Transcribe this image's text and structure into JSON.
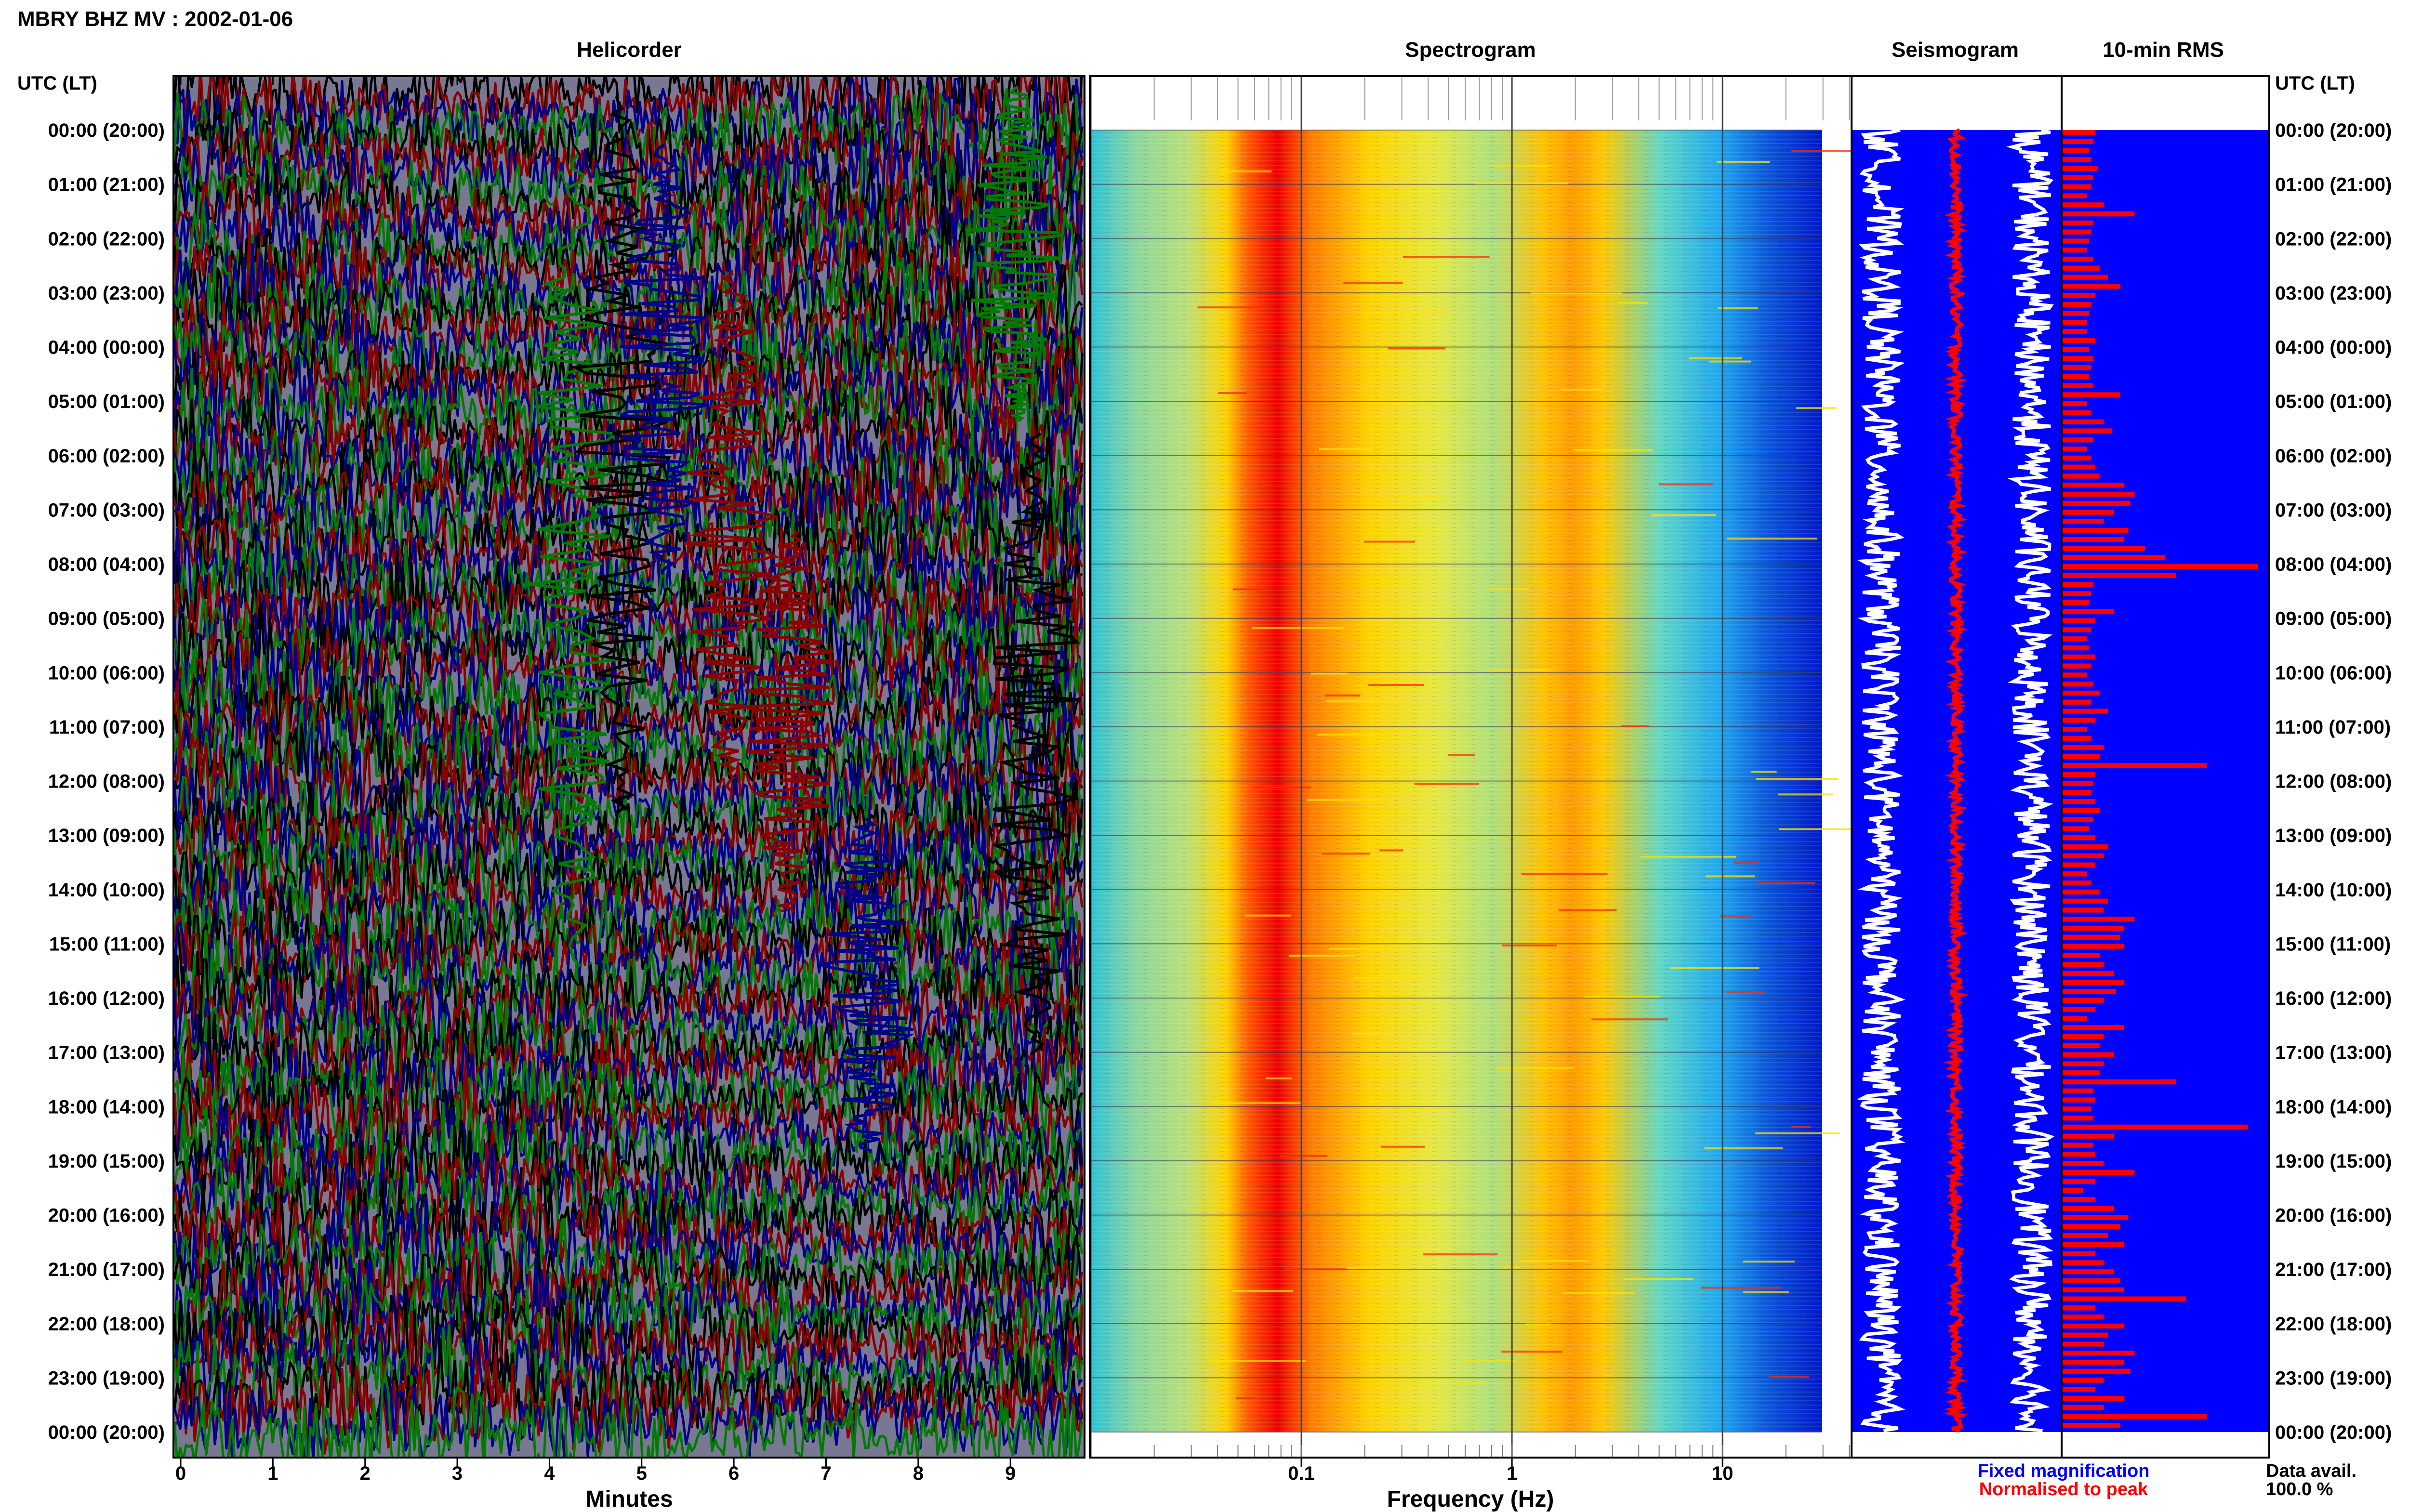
{
  "header": {
    "title": "MBRY BHZ MV : 2002-01-06",
    "utc_label_left": "UTC (LT)",
    "utc_label_right": "UTC (LT)"
  },
  "panels": {
    "helicorder": "Helicorder",
    "spectrogram": "Spectrogram",
    "seismogram": "Seismogram",
    "rms": "10-min RMS"
  },
  "legend": {
    "fixed": "Fixed magnification",
    "normalised": "Normalised to peak",
    "fixed_color": "#0000ff",
    "normalised_color": "#ff0000"
  },
  "data_avail": {
    "label": "Data avail.",
    "value": "100.0 %"
  },
  "colors": {
    "helicorder_traces": [
      "#000000",
      "#8b0000",
      "#00008b",
      "#007a00"
    ],
    "seismogram_bg": "#0000ff",
    "rms_bar": "#ff0000"
  },
  "chart_data": [
    {
      "type": "line",
      "title": "Helicorder",
      "xlabel": "Minutes",
      "xlim": [
        0,
        10
      ],
      "x_ticks": [
        "0",
        "1",
        "2",
        "3",
        "4",
        "5",
        "6",
        "7",
        "8",
        "9"
      ],
      "rows_utc": [
        "00:00 (20:00)",
        "01:00 (21:00)",
        "02:00 (22:00)",
        "03:00 (23:00)",
        "04:00 (00:00)",
        "05:00 (01:00)",
        "06:00 (02:00)",
        "07:00 (03:00)",
        "08:00 (04:00)",
        "09:00 (05:00)",
        "10:00 (06:00)",
        "11:00 (07:00)",
        "12:00 (08:00)",
        "13:00 (09:00)",
        "14:00 (10:00)",
        "15:00 (11:00)",
        "16:00 (12:00)",
        "17:00 (13:00)",
        "18:00 (14:00)",
        "19:00 (15:00)",
        "20:00 (16:00)",
        "21:00 (17:00)",
        "22:00 (18:00)",
        "23:00 (19:00)",
        "00:00 (20:00)"
      ]
    },
    {
      "type": "heatmap",
      "title": "Spectrogram",
      "xlabel": "Frequency (Hz)",
      "x_scale": "log",
      "xlim": [
        0.01,
        50
      ],
      "x_tick_labels": [
        "0.1",
        "1",
        "10"
      ],
      "peak_band_hz": [
        0.18,
        0.3
      ],
      "secondary_band_hz": [
        2.5,
        4.5
      ]
    },
    {
      "type": "line",
      "title": "Seismogram",
      "note_rows": 144
    },
    {
      "type": "bar",
      "title": "10-min RMS",
      "bins": 144,
      "relative_values": [
        0.16,
        0.15,
        0.13,
        0.14,
        0.17,
        0.15,
        0.14,
        0.12,
        0.2,
        0.35,
        0.15,
        0.14,
        0.13,
        0.12,
        0.15,
        0.18,
        0.22,
        0.28,
        0.16,
        0.14,
        0.13,
        0.12,
        0.12,
        0.16,
        0.13,
        0.15,
        0.14,
        0.13,
        0.15,
        0.28,
        0.12,
        0.14,
        0.2,
        0.24,
        0.15,
        0.12,
        0.14,
        0.16,
        0.18,
        0.3,
        0.35,
        0.33,
        0.25,
        0.2,
        0.32,
        0.3,
        0.4,
        0.5,
        0.95,
        0.55,
        0.15,
        0.14,
        0.13,
        0.25,
        0.16,
        0.14,
        0.12,
        0.13,
        0.16,
        0.14,
        0.12,
        0.15,
        0.18,
        0.14,
        0.22,
        0.16,
        0.12,
        0.14,
        0.2,
        0.18,
        0.7,
        0.16,
        0.15,
        0.14,
        0.16,
        0.18,
        0.15,
        0.13,
        0.16,
        0.22,
        0.2,
        0.16,
        0.12,
        0.14,
        0.18,
        0.22,
        0.2,
        0.35,
        0.3,
        0.28,
        0.3,
        0.18,
        0.2,
        0.25,
        0.3,
        0.26,
        0.2,
        0.16,
        0.12,
        0.3,
        0.2,
        0.18,
        0.25,
        0.2,
        0.18,
        0.55,
        0.15,
        0.16,
        0.14,
        0.15,
        0.9,
        0.25,
        0.15,
        0.16,
        0.2,
        0.35,
        0.16,
        0.1,
        0.16,
        0.25,
        0.32,
        0.28,
        0.22,
        0.3,
        0.16,
        0.2,
        0.25,
        0.28,
        0.3,
        0.6,
        0.16,
        0.2,
        0.3,
        0.22,
        0.2,
        0.35,
        0.3,
        0.33,
        0.2,
        0.16,
        0.3,
        0.2,
        0.7,
        0.28
      ]
    }
  ]
}
